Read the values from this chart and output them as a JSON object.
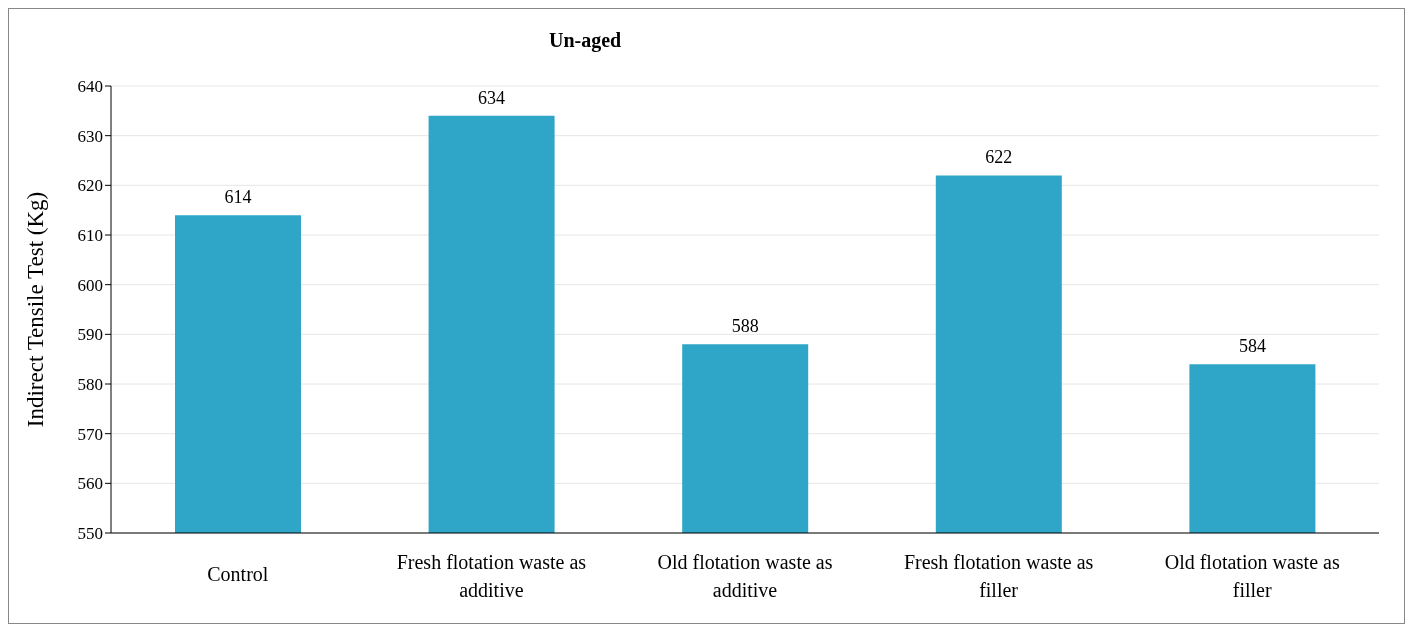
{
  "chart_data": {
    "type": "bar",
    "title": "Un-aged",
    "ylabel": "Indirect Tensile Test (Kg)",
    "categories": [
      "Control",
      "Fresh flotation waste as additive",
      "Old flotation waste as additive",
      "Fresh flotation waste as filler",
      "Old flotation waste as filler"
    ],
    "values": [
      614,
      634,
      588,
      622,
      584
    ],
    "color": "#2fa6c8",
    "ylim": [
      550,
      640
    ],
    "yticks": [
      550,
      560,
      570,
      580,
      590,
      600,
      610,
      620,
      630,
      640
    ],
    "grid": "y",
    "data_labels": true
  }
}
